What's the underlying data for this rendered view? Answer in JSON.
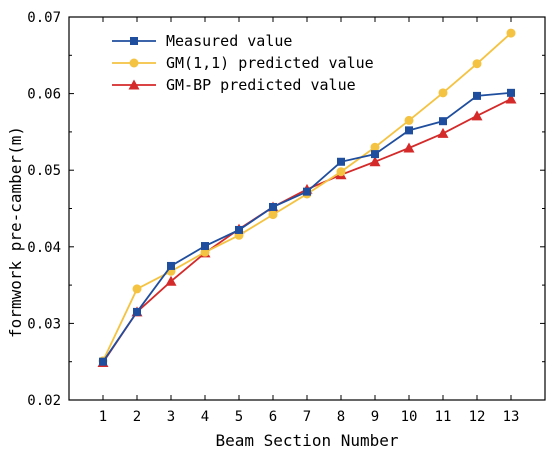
{
  "chart_data": {
    "type": "line",
    "title": "",
    "xlabel": "Beam Section Number",
    "ylabel": "formwork pre-camber(m)",
    "x": [
      1,
      2,
      3,
      4,
      5,
      6,
      7,
      8,
      9,
      10,
      11,
      12,
      13
    ],
    "xlim": [
      0,
      14
    ],
    "ylim": [
      0.02,
      0.07
    ],
    "x_ticks": [
      "1",
      "2",
      "3",
      "4",
      "5",
      "6",
      "7",
      "8",
      "9",
      "10",
      "11",
      "12",
      "13"
    ],
    "y_ticks": [
      "0.02",
      "0.03",
      "0.04",
      "0.05",
      "0.06",
      "0.07"
    ],
    "grid": false,
    "legend_position": "top-left",
    "series": [
      {
        "name": "Measured value",
        "color": "#1f4e9e",
        "marker": "square",
        "values": [
          0.025,
          0.0315,
          0.0375,
          0.0401,
          0.0422,
          0.0452,
          0.0472,
          0.0511,
          0.0521,
          0.0552,
          0.0564,
          0.0597,
          0.0601
        ]
      },
      {
        "name": "GM(1,1) predicted value",
        "color": "#f5c342",
        "marker": "circle",
        "values": [
          0.0251,
          0.0345,
          0.0368,
          0.0393,
          0.0415,
          0.0442,
          0.0469,
          0.0498,
          0.053,
          0.0565,
          0.0601,
          0.0639,
          0.0679
        ]
      },
      {
        "name": "GM-BP predicted value",
        "color": "#d42a2a",
        "marker": "triangle",
        "values": [
          0.0249,
          0.0315,
          0.0355,
          0.0392,
          0.0423,
          0.0452,
          0.0475,
          0.0494,
          0.0511,
          0.0529,
          0.0548,
          0.0571,
          0.0593
        ]
      }
    ]
  }
}
